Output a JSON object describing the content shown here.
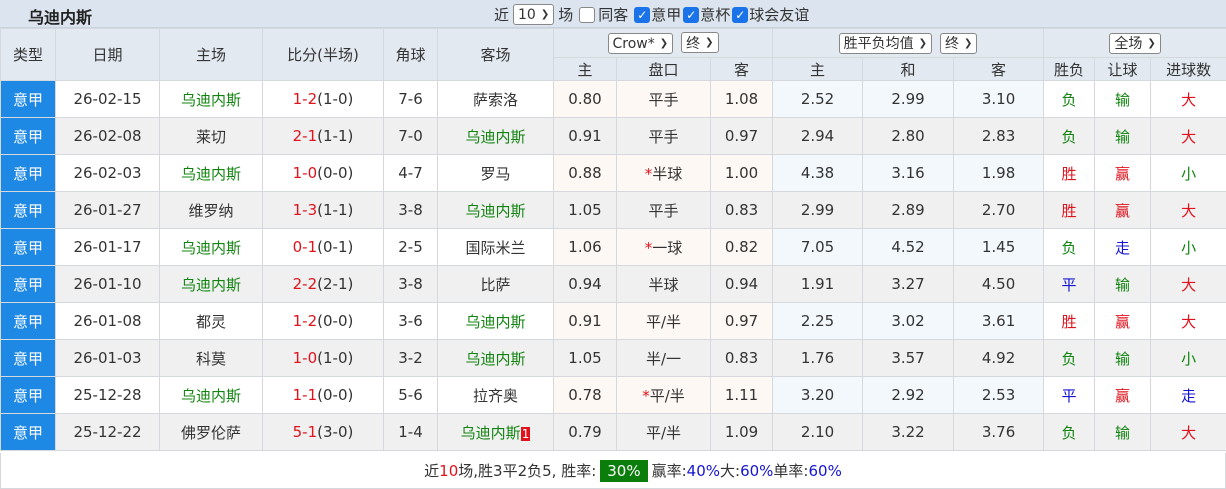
{
  "title": "乌迪内斯",
  "filters": {
    "recent_prefix": "近",
    "recent_value": "10",
    "recent_suffix": "场",
    "same_label": "同客",
    "same_checked": false,
    "leagues": [
      {
        "label": "意甲",
        "checked": true
      },
      {
        "label": "意杯",
        "checked": true
      },
      {
        "label": "球会友谊",
        "checked": true
      }
    ]
  },
  "headers": {
    "type": "类型",
    "date": "日期",
    "home": "主场",
    "score": "比分(半场)",
    "corner": "角球",
    "away": "客场",
    "company_select": "Crow*",
    "odds_select": "终",
    "avg_select": "胜平负均值",
    "avg_time_select": "终",
    "period_select": "全场",
    "sub": [
      "主",
      "盘口",
      "客",
      "主",
      "和",
      "客",
      "胜负",
      "让球",
      "进球数"
    ]
  },
  "colors": {
    "type_bg": "#1e88e5",
    "win": "#e0121c",
    "lose": "#11840f",
    "draw": "#1414d2",
    "rate_bg": "#0a7d0a"
  },
  "rows": [
    {
      "type": "意甲",
      "date": "26-02-15",
      "home": "乌迪内斯",
      "home_team": true,
      "score": "1-2",
      "half": "(1-0)",
      "corner": "7-6",
      "away": "萨索洛",
      "away_team": false,
      "o_h": "0.80",
      "star": "",
      "line": "平手",
      "o_a": "1.08",
      "e_h": "2.52",
      "e_d": "2.99",
      "e_a": "3.10",
      "res": "负",
      "hc": "输",
      "ou": "大",
      "badge": ""
    },
    {
      "type": "意甲",
      "date": "26-02-08",
      "home": "莱切",
      "home_team": false,
      "score": "2-1",
      "half": "(1-1)",
      "corner": "7-0",
      "away": "乌迪内斯",
      "away_team": true,
      "o_h": "0.91",
      "star": "",
      "line": "平手",
      "o_a": "0.97",
      "e_h": "2.94",
      "e_d": "2.80",
      "e_a": "2.83",
      "res": "负",
      "hc": "输",
      "ou": "大",
      "badge": ""
    },
    {
      "type": "意甲",
      "date": "26-02-03",
      "home": "乌迪内斯",
      "home_team": true,
      "score": "1-0",
      "half": "(0-0)",
      "corner": "4-7",
      "away": "罗马",
      "away_team": false,
      "o_h": "0.88",
      "star": "*",
      "line": "半球",
      "o_a": "1.00",
      "e_h": "4.38",
      "e_d": "3.16",
      "e_a": "1.98",
      "res": "胜",
      "hc": "赢",
      "ou": "小",
      "badge": ""
    },
    {
      "type": "意甲",
      "date": "26-01-27",
      "home": "维罗纳",
      "home_team": false,
      "score": "1-3",
      "half": "(1-1)",
      "corner": "3-8",
      "away": "乌迪内斯",
      "away_team": true,
      "o_h": "1.05",
      "star": "",
      "line": "平手",
      "o_a": "0.83",
      "e_h": "2.99",
      "e_d": "2.89",
      "e_a": "2.70",
      "res": "胜",
      "hc": "赢",
      "ou": "大",
      "badge": ""
    },
    {
      "type": "意甲",
      "date": "26-01-17",
      "home": "乌迪内斯",
      "home_team": true,
      "score": "0-1",
      "half": "(0-1)",
      "corner": "2-5",
      "away": "国际米兰",
      "away_team": false,
      "o_h": "1.06",
      "star": "*",
      "line": "一球",
      "o_a": "0.82",
      "e_h": "7.05",
      "e_d": "4.52",
      "e_a": "1.45",
      "res": "负",
      "hc": "走",
      "ou": "小",
      "badge": ""
    },
    {
      "type": "意甲",
      "date": "26-01-10",
      "home": "乌迪内斯",
      "home_team": true,
      "score": "2-2",
      "half": "(2-1)",
      "corner": "3-8",
      "away": "比萨",
      "away_team": false,
      "o_h": "0.94",
      "star": "",
      "line": "半球",
      "o_a": "0.94",
      "e_h": "1.91",
      "e_d": "3.27",
      "e_a": "4.50",
      "res": "平",
      "hc": "输",
      "ou": "大",
      "badge": ""
    },
    {
      "type": "意甲",
      "date": "26-01-08",
      "home": "都灵",
      "home_team": false,
      "score": "1-2",
      "half": "(0-0)",
      "corner": "3-6",
      "away": "乌迪内斯",
      "away_team": true,
      "o_h": "0.91",
      "star": "",
      "line": "平/半",
      "o_a": "0.97",
      "e_h": "2.25",
      "e_d": "3.02",
      "e_a": "3.61",
      "res": "胜",
      "hc": "赢",
      "ou": "大",
      "badge": ""
    },
    {
      "type": "意甲",
      "date": "26-01-03",
      "home": "科莫",
      "home_team": false,
      "score": "1-0",
      "half": "(1-0)",
      "corner": "3-2",
      "away": "乌迪内斯",
      "away_team": true,
      "o_h": "1.05",
      "star": "",
      "line": "半/一",
      "o_a": "0.83",
      "e_h": "1.76",
      "e_d": "3.57",
      "e_a": "4.92",
      "res": "负",
      "hc": "输",
      "ou": "小",
      "badge": ""
    },
    {
      "type": "意甲",
      "date": "25-12-28",
      "home": "乌迪内斯",
      "home_team": true,
      "score": "1-1",
      "half": "(0-0)",
      "corner": "5-6",
      "away": "拉齐奥",
      "away_team": false,
      "o_h": "0.78",
      "star": "*",
      "line": "平/半",
      "o_a": "1.11",
      "e_h": "3.20",
      "e_d": "2.92",
      "e_a": "2.53",
      "res": "平",
      "hc": "赢",
      "ou": "走",
      "badge": ""
    },
    {
      "type": "意甲",
      "date": "25-12-22",
      "home": "佛罗伦萨",
      "home_team": false,
      "score": "5-1",
      "half": "(3-0)",
      "corner": "1-4",
      "away": "乌迪内斯",
      "away_team": true,
      "o_h": "0.79",
      "star": "",
      "line": "平/半",
      "o_a": "1.09",
      "e_h": "2.10",
      "e_d": "3.22",
      "e_a": "3.76",
      "res": "负",
      "hc": "输",
      "ou": "大",
      "badge": "1"
    }
  ],
  "footer": {
    "p1": "近",
    "n": "10",
    "p2": "场,胜3平2负5, 胜率:",
    "win_rate": "30%",
    "l1": "赢率:",
    "win_hc": "40%",
    "l2": " 大:",
    "big": "60%",
    "l3": " 单率:",
    "odd": "60%"
  }
}
